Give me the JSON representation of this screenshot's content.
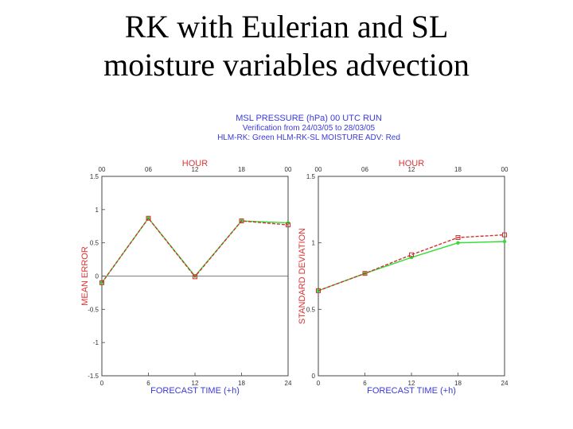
{
  "slide": {
    "title_line1": "RK with Eulerian and SL",
    "title_line2": "moisture variables advection"
  },
  "figure_header": {
    "line1": "MSL PRESSURE (hPa)   00 UTC RUN",
    "line2": "Verification from 24/03/05 to 28/03/05",
    "line3": "HLM-RK: Green   HLM-RK-SL MOISTURE ADV: Red"
  },
  "colors": {
    "rk": "#33dd33",
    "rk_sl": "#cc3333",
    "header": "#3a3adc",
    "axis_label": "#dd3333",
    "hour": "#dd3333"
  },
  "chart_data": [
    {
      "type": "line",
      "top_label": "HOUR",
      "top_ticks": [
        "00",
        "06",
        "12",
        "18",
        "00"
      ],
      "xlabel": "FORECAST TIME (+h)",
      "ylabel": "MEAN ERROR",
      "x": [
        0,
        6,
        12,
        18,
        24
      ],
      "xticks": [
        "0",
        "6",
        "12",
        "18",
        "24"
      ],
      "ylim": [
        -1.5,
        1.5
      ],
      "yticks": [
        "-1.5",
        "-1",
        "-0.5",
        "0",
        "0.5",
        "1",
        "1.5"
      ],
      "zero_line": true,
      "series": [
        {
          "name": "HLM-RK",
          "color": "green",
          "values": [
            -0.1,
            0.87,
            0.0,
            0.83,
            0.8
          ]
        },
        {
          "name": "HLM-RK-SL MOISTURE ADV",
          "color": "red",
          "values": [
            -0.1,
            0.87,
            -0.01,
            0.83,
            0.77
          ]
        }
      ]
    },
    {
      "type": "line",
      "top_label": "HOUR",
      "top_ticks": [
        "00",
        "06",
        "12",
        "18",
        "00"
      ],
      "xlabel": "FORECAST TIME (+h)",
      "ylabel": "STANDARD DEVIATION",
      "x": [
        0,
        6,
        12,
        18,
        24
      ],
      "xticks": [
        "0",
        "6",
        "12",
        "18",
        "24"
      ],
      "ylim": [
        0,
        1.5
      ],
      "yticks": [
        "0",
        "0.5",
        "1",
        "1.5"
      ],
      "zero_line": false,
      "series": [
        {
          "name": "HLM-RK",
          "color": "green",
          "values": [
            0.64,
            0.77,
            0.89,
            1.0,
            1.01
          ]
        },
        {
          "name": "HLM-RK-SL MOISTURE ADV",
          "color": "red",
          "values": [
            0.64,
            0.77,
            0.91,
            1.04,
            1.06
          ]
        }
      ]
    }
  ]
}
